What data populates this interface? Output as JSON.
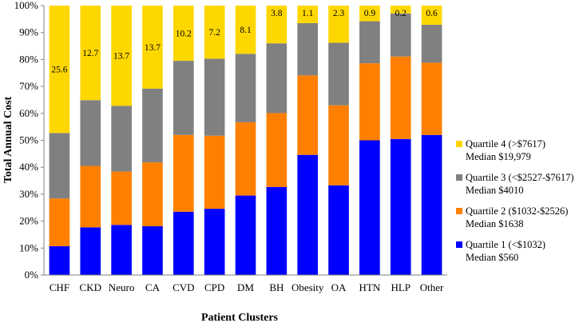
{
  "chart_data": {
    "type": "bar",
    "stacked": true,
    "xlabel": "Patient Clusters",
    "ylabel": "Total Annual Cost",
    "ylim": [
      0,
      100
    ],
    "ytick_labels": [
      "0%",
      "10%",
      "20%",
      "30%",
      "40%",
      "50%",
      "60%",
      "70%",
      "80%",
      "90%",
      "100%"
    ],
    "categories": [
      "CHF",
      "CKD",
      "Neuro",
      "CA",
      "CVD",
      "CPD",
      "DM",
      "BH",
      "Obesity",
      "OA",
      "HTN",
      "HLP",
      "Other"
    ],
    "series": [
      {
        "name": "Quartile 1 (<$1032)",
        "median": "Median $560",
        "color": "#0000ff",
        "values": [
          10.7,
          17.7,
          18.6,
          18.1,
          23.5,
          24.6,
          29.5,
          32.7,
          44.6,
          33.3,
          50.0,
          50.5,
          52.0
        ]
      },
      {
        "name": "Quartile 2 ($1032-$2526)",
        "median": "Median $1638",
        "color": "#ff8000",
        "values": [
          17.7,
          22.8,
          19.8,
          23.7,
          28.5,
          27.1,
          27.2,
          27.4,
          29.5,
          29.7,
          28.6,
          30.6,
          26.8
        ]
      },
      {
        "name": "Quartile 3 (<$2527-$7617)",
        "median": "Median $4010",
        "color": "#808080",
        "values": [
          24.3,
          24.4,
          24.4,
          27.4,
          27.5,
          28.6,
          25.4,
          25.9,
          19.4,
          23.2,
          15.6,
          16.0,
          14.1
        ]
      },
      {
        "name": "Quartile 4 (>$7617)",
        "median": "Median $19,979",
        "color": "#ffd700",
        "values": [
          47.3,
          35.1,
          37.2,
          30.8,
          20.5,
          19.7,
          17.9,
          14.0,
          6.5,
          13.8,
          5.8,
          2.9,
          7.1
        ]
      }
    ],
    "data_labels": [
      "25.6",
      "12.7",
      "13.7",
      "13.7",
      "10.2",
      "7.2",
      "8.1",
      "3.8",
      "1.1",
      "2.3",
      "0.9",
      "0.2",
      "0.6"
    ],
    "legend_position": "right",
    "grid": false
  }
}
